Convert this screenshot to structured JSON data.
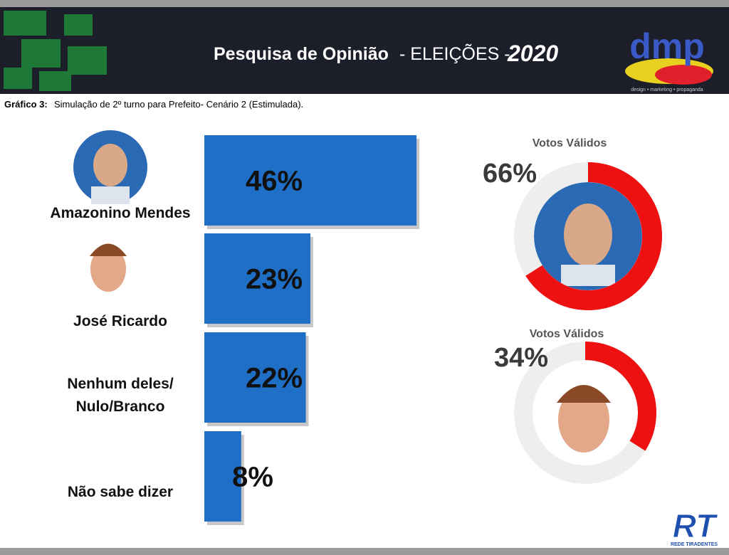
{
  "header": {
    "title": "Pesquisa de Opinião",
    "title_middle": "- ELEIÇÕES -",
    "year": "2020",
    "logo": "dmp",
    "logo_tagline": "design • marketing • propaganda"
  },
  "caption": {
    "label": "Gráfico 3:",
    "text": "Simulação de 2º turno para Prefeito- Cenário 2 (Estimulada)."
  },
  "chart_data": [
    {
      "type": "bar",
      "categories": [
        "Amazonino Mendes",
        "José Ricardo",
        "Nenhum deles/\nNulo/Branco",
        "Não sabe dizer"
      ],
      "values": [
        46,
        23,
        22,
        8
      ],
      "value_labels": [
        "46%",
        "23%",
        "22%",
        "8%"
      ],
      "color": "#1f6fc6"
    },
    {
      "type": "donut",
      "title": "Votos Válidos",
      "values": [
        66
      ],
      "value_labels": [
        "66%"
      ],
      "color": "#ee1111"
    },
    {
      "type": "donut",
      "title": "Votos Válidos",
      "values": [
        34
      ],
      "value_labels": [
        "34%"
      ],
      "color": "#ee1111"
    }
  ],
  "footer": {
    "logo": "RT",
    "logo_sub": "REDE TIRADENTES"
  }
}
